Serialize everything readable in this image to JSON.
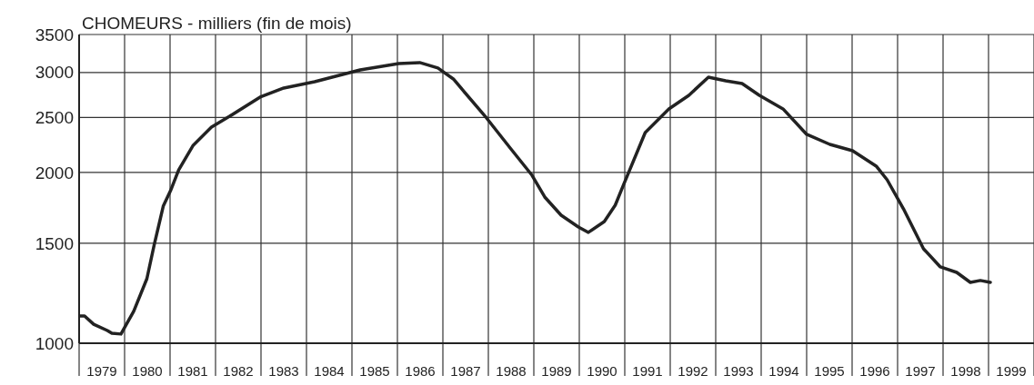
{
  "chart_data": {
    "type": "line",
    "title": "CHOMEURS - milliers (fin de mois)",
    "log": "y",
    "grid": true,
    "marker": "none",
    "line_style": "solid",
    "xlim": [
      1979,
      2000
    ],
    "xticks": [
      {
        "value": 1979,
        "label": null
      },
      {
        "value": 1979.5,
        "label": "1979"
      },
      {
        "value": 1980,
        "label": null
      },
      {
        "value": 1980.5,
        "label": "1980"
      },
      {
        "value": 1981,
        "label": null
      },
      {
        "value": 1981.5,
        "label": "1981"
      },
      {
        "value": 1982,
        "label": null
      },
      {
        "value": 1982.5,
        "label": "1982"
      },
      {
        "value": 1983,
        "label": null
      },
      {
        "value": 1983.5,
        "label": "1983"
      },
      {
        "value": 1984,
        "label": null
      },
      {
        "value": 1984.5,
        "label": "1984"
      },
      {
        "value": 1985,
        "label": null
      },
      {
        "value": 1985.5,
        "label": "1985"
      },
      {
        "value": 1986,
        "label": null
      },
      {
        "value": 1986.5,
        "label": "1986"
      },
      {
        "value": 1987,
        "label": null
      },
      {
        "value": 1987.5,
        "label": "1987"
      },
      {
        "value": 1988,
        "label": null
      },
      {
        "value": 1988.5,
        "label": "1988"
      },
      {
        "value": 1989,
        "label": null
      },
      {
        "value": 1989.5,
        "label": "1989"
      },
      {
        "value": 1990,
        "label": null
      },
      {
        "value": 1990.5,
        "label": "1990"
      },
      {
        "value": 1991,
        "label": null
      },
      {
        "value": 1991.5,
        "label": "1991"
      },
      {
        "value": 1992,
        "label": null
      },
      {
        "value": 1992.5,
        "label": "1992"
      },
      {
        "value": 1993,
        "label": null
      },
      {
        "value": 1993.5,
        "label": "1993"
      },
      {
        "value": 1994,
        "label": null
      },
      {
        "value": 1994.5,
        "label": "1994"
      },
      {
        "value": 1995,
        "label": null
      },
      {
        "value": 1995.5,
        "label": "1995"
      },
      {
        "value": 1996,
        "label": null
      },
      {
        "value": 1996.5,
        "label": "1996"
      },
      {
        "value": 1997,
        "label": null
      },
      {
        "value": 1997.5,
        "label": "1997"
      },
      {
        "value": 1998,
        "label": null
      },
      {
        "value": 1998.5,
        "label": "1998"
      },
      {
        "value": 1999,
        "label": null
      },
      {
        "value": 1999.5,
        "label": "1999"
      },
      {
        "value": 2000,
        "label": null
      }
    ],
    "ylim": [
      1000,
      3500
    ],
    "yticks": [
      1000,
      1500,
      2000,
      2500,
      3000,
      3500
    ],
    "series": [
      {
        "color": "#222222",
        "x": [
          1979.02,
          1979.12,
          1979.32,
          1979.62,
          1979.72,
          1979.92,
          1980.04,
          1980.2,
          1980.49,
          1980.65,
          1980.85,
          1981.01,
          1981.19,
          1981.51,
          1981.91,
          1982.31,
          1982.98,
          1983.5,
          1984.18,
          1985.18,
          1986.03,
          1986.49,
          1986.89,
          1987.23,
          1987.96,
          1988.48,
          1988.96,
          1989.24,
          1989.6,
          1989.98,
          1990.2,
          1990.55,
          1990.79,
          1990.97,
          1991.45,
          1991.97,
          1992.41,
          1992.84,
          1993.22,
          1993.58,
          1993.96,
          1994.48,
          1995.0,
          1995.51,
          1996.01,
          1996.53,
          1996.77,
          1997.13,
          1997.57,
          1997.94,
          1998.3,
          1998.6,
          1998.82,
          1999.04
        ],
        "values": [
          1117,
          1117,
          1080,
          1053,
          1041,
          1038,
          1080,
          1138,
          1299,
          1489,
          1744,
          1857,
          2021,
          2233,
          2404,
          2512,
          2715,
          2817,
          2890,
          3032,
          3111,
          3123,
          3055,
          2922,
          2494,
          2208,
          1977,
          1810,
          1681,
          1603,
          1568,
          1638,
          1751,
          1899,
          2351,
          2588,
          2735,
          2944,
          2901,
          2869,
          2735,
          2588,
          2334,
          2241,
          2184,
          2052,
          1941,
          1725,
          1467,
          1363,
          1333,
          1280,
          1290,
          1280
        ]
      }
    ]
  }
}
